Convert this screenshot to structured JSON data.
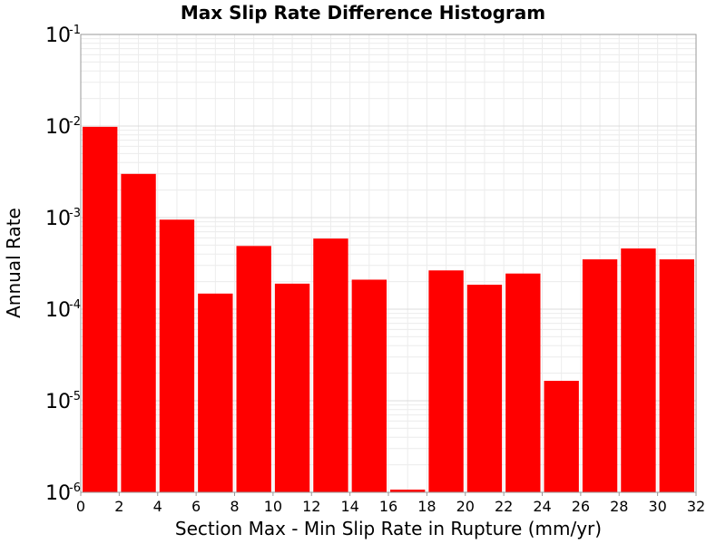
{
  "chart_data": {
    "type": "bar",
    "title": "Max Slip Rate Difference Histogram",
    "xlabel": "Section Max - Min Slip Rate in Rupture (mm/yr)",
    "ylabel": "Annual Rate",
    "xlim": [
      0,
      32
    ],
    "ylim": [
      1e-06,
      0.1
    ],
    "y_scale": "log",
    "x_ticks": [
      "0",
      "2",
      "4",
      "6",
      "8",
      "10",
      "12",
      "14",
      "16",
      "18",
      "20",
      "22",
      "24",
      "26",
      "28",
      "30",
      "32"
    ],
    "y_ticks": [
      {
        "base": "10",
        "exp": "-1"
      },
      {
        "base": "10",
        "exp": "-2"
      },
      {
        "base": "10",
        "exp": "-3"
      },
      {
        "base": "10",
        "exp": "-4"
      },
      {
        "base": "10",
        "exp": "-5"
      },
      {
        "base": "10",
        "exp": "-6"
      }
    ],
    "bin_width": 2,
    "bins": [
      {
        "x": 1,
        "value": 0.0098
      },
      {
        "x": 3,
        "value": 0.003
      },
      {
        "x": 5,
        "value": 0.00095
      },
      {
        "x": 7,
        "value": 0.000148
      },
      {
        "x": 9,
        "value": 0.00049
      },
      {
        "x": 11,
        "value": 0.00019
      },
      {
        "x": 13,
        "value": 0.00059
      },
      {
        "x": 15,
        "value": 0.00021
      },
      {
        "x": 17,
        "value": 1.07e-06
      },
      {
        "x": 19,
        "value": 0.000265
      },
      {
        "x": 21,
        "value": 0.000185
      },
      {
        "x": 23,
        "value": 0.000245
      },
      {
        "x": 25,
        "value": 1.65e-05
      },
      {
        "x": 27,
        "value": 0.00035
      },
      {
        "x": 29,
        "value": 0.00046
      },
      {
        "x": 31,
        "value": 0.00035
      }
    ],
    "bar_color": "#ff0000",
    "grid": true
  }
}
